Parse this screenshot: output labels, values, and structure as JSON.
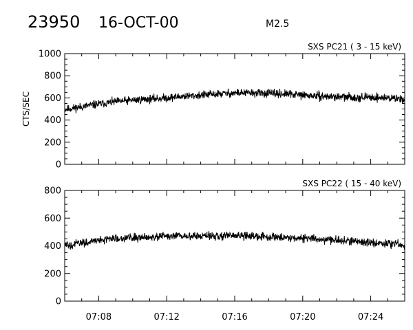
{
  "header": {
    "event_id": "23950",
    "date": "16-OCT-00",
    "flare_class": "M2.5"
  },
  "chart_data": [
    {
      "type": "line",
      "title": "SXS PC21   (  3 - 15 keV)",
      "xlabel": "",
      "ylabel": "CTS/SEC",
      "xlim": [
        "07:06",
        "07:26"
      ],
      "ylim": [
        0,
        1000
      ],
      "x_ticks": [
        "07:08",
        "07:12",
        "07:16",
        "07:20",
        "07:24"
      ],
      "x_tick_labels_shown": false,
      "y_ticks": [
        "0",
        "200",
        "400",
        "600",
        "800",
        "1000"
      ],
      "series": [
        {
          "x": [
            "07:06",
            "07:07",
            "07:08",
            "07:09",
            "07:10",
            "07:11",
            "07:12",
            "07:13",
            "07:14",
            "07:15",
            "07:16",
            "07:17",
            "07:18",
            "07:19",
            "07:20",
            "07:21",
            "07:22",
            "07:23",
            "07:24",
            "07:25",
            "07:26"
          ],
          "values": [
            495,
            520,
            545,
            565,
            580,
            590,
            600,
            615,
            625,
            635,
            645,
            645,
            640,
            635,
            625,
            615,
            610,
            605,
            605,
            600,
            590
          ]
        }
      ],
      "grid": false
    },
    {
      "type": "line",
      "title": "SXS PC22   ( 15 - 40 keV)",
      "xlabel": "",
      "ylabel": "",
      "xlim": [
        "07:06",
        "07:26"
      ],
      "ylim": [
        0,
        800
      ],
      "x_ticks": [
        "07:08",
        "07:12",
        "07:16",
        "07:20",
        "07:24"
      ],
      "x_tick_labels_shown": true,
      "y_ticks": [
        "0",
        "200",
        "400",
        "600",
        "800"
      ],
      "series": [
        {
          "x": [
            "07:06",
            "07:07",
            "07:08",
            "07:09",
            "07:10",
            "07:11",
            "07:12",
            "07:13",
            "07:14",
            "07:15",
            "07:16",
            "07:17",
            "07:18",
            "07:19",
            "07:20",
            "07:21",
            "07:22",
            "07:23",
            "07:24",
            "07:25",
            "07:26"
          ],
          "values": [
            400,
            420,
            440,
            455,
            460,
            465,
            468,
            470,
            470,
            472,
            472,
            470,
            465,
            460,
            455,
            448,
            440,
            432,
            425,
            415,
            405
          ]
        }
      ],
      "grid": false
    }
  ]
}
